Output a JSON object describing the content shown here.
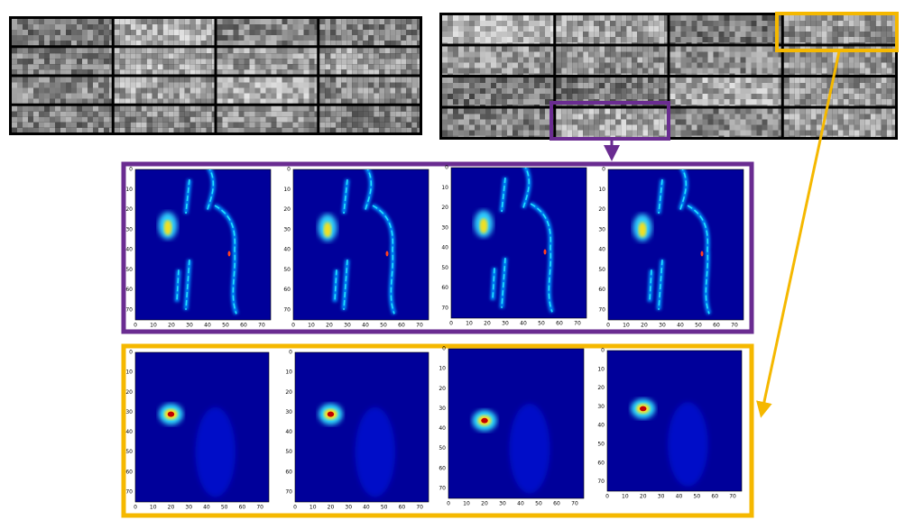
{
  "heatmap_axes": {
    "yticks": [
      0,
      10,
      20,
      30,
      40,
      50,
      60,
      70
    ],
    "xticks": [
      0,
      10,
      20,
      30,
      40,
      50,
      60,
      70
    ]
  }
}
